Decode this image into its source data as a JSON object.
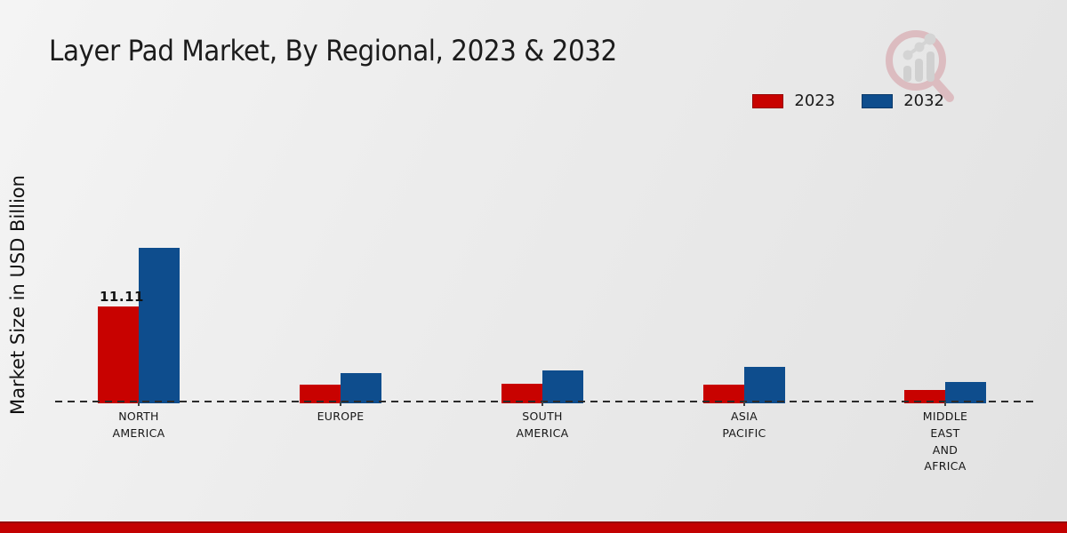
{
  "chart_data": {
    "type": "bar",
    "title": "Layer Pad Market, By Regional, 2023 & 2032",
    "ylabel": "Market Size in USD Billion",
    "xlabel": "",
    "categories": [
      "NORTH AMERICA",
      "EUROPE",
      "SOUTH AMERICA",
      "ASIA PACIFIC",
      "MIDDLE EAST AND AFRICA"
    ],
    "series": [
      {
        "name": "2023",
        "color": "#c80200",
        "values": [
          11.11,
          2.0,
          2.1,
          2.0,
          1.4
        ]
      },
      {
        "name": "2032",
        "color": "#0e4d8d",
        "values": [
          18.0,
          3.3,
          3.6,
          4.1,
          2.3
        ]
      }
    ],
    "data_labels": [
      {
        "text": "11.11",
        "series_index": 0,
        "category_index": 0
      }
    ],
    "legend_position": "top-right",
    "grid": false,
    "baseline_style": "dashed",
    "ylim": [
      0,
      20
    ]
  },
  "footer": {
    "band_color": "#c30101"
  },
  "logo": {
    "name": "magnifier-bar-chart-logo"
  }
}
